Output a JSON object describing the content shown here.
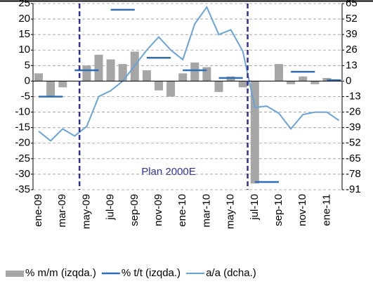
{
  "chart_data": {
    "type": "bar-line",
    "categories": [
      "ene-09",
      null,
      "mar-09",
      null,
      "may-09",
      null,
      "jul-09",
      null,
      "sep-09",
      null,
      "nov-09",
      null,
      "ene-10",
      null,
      "mar-10",
      null,
      "may-10",
      null,
      "jul-10",
      null,
      "sep-10",
      null,
      "nov-10",
      null,
      "ene-11",
      null
    ],
    "series": [
      {
        "name": "% m/m (izqda.)",
        "kind": "bar",
        "color": "#a6a6a6",
        "values": [
          2.5,
          -5,
          -2,
          0,
          5,
          8.5,
          7,
          5.5,
          9.5,
          3.5,
          -3,
          -5,
          2.5,
          6,
          4.5,
          -3.5,
          1.5,
          -2,
          -33,
          0,
          5.5,
          -1,
          1.5,
          -1,
          1,
          0.5
        ]
      },
      {
        "name": "% t/t (izqda.)",
        "kind": "dash",
        "color": "#2f6db5",
        "values": [
          null,
          -5,
          null,
          null,
          3.5,
          null,
          null,
          23,
          null,
          null,
          7.5,
          null,
          null,
          3.5,
          null,
          null,
          1,
          null,
          null,
          -32.5,
          null,
          null,
          3,
          null,
          null,
          0.3
        ]
      },
      {
        "name": "a/a (dcha.)",
        "kind": "line",
        "axis": "y2",
        "color": "#6aa3d8",
        "values": [
          -42,
          -50,
          -40,
          -46,
          -38,
          -13,
          -8,
          0,
          13,
          26,
          37,
          26,
          18,
          48,
          62,
          39,
          43,
          25,
          -22,
          -21,
          -27,
          -40,
          -28,
          -26,
          -26,
          -33
        ]
      }
    ],
    "ylim": [
      -35,
      25
    ],
    "yticks": [
      25,
      20,
      15,
      10,
      5,
      0,
      -5,
      -10,
      -15,
      -20,
      -25,
      -30,
      -35
    ],
    "y2lim": [
      -91,
      65
    ],
    "y2ticks": [
      65,
      52,
      39,
      26,
      13,
      0,
      -13,
      -26,
      -39,
      -52,
      -65,
      -78,
      -91
    ],
    "grid": true,
    "annotations": [
      "Plan 2000E"
    ]
  }
}
